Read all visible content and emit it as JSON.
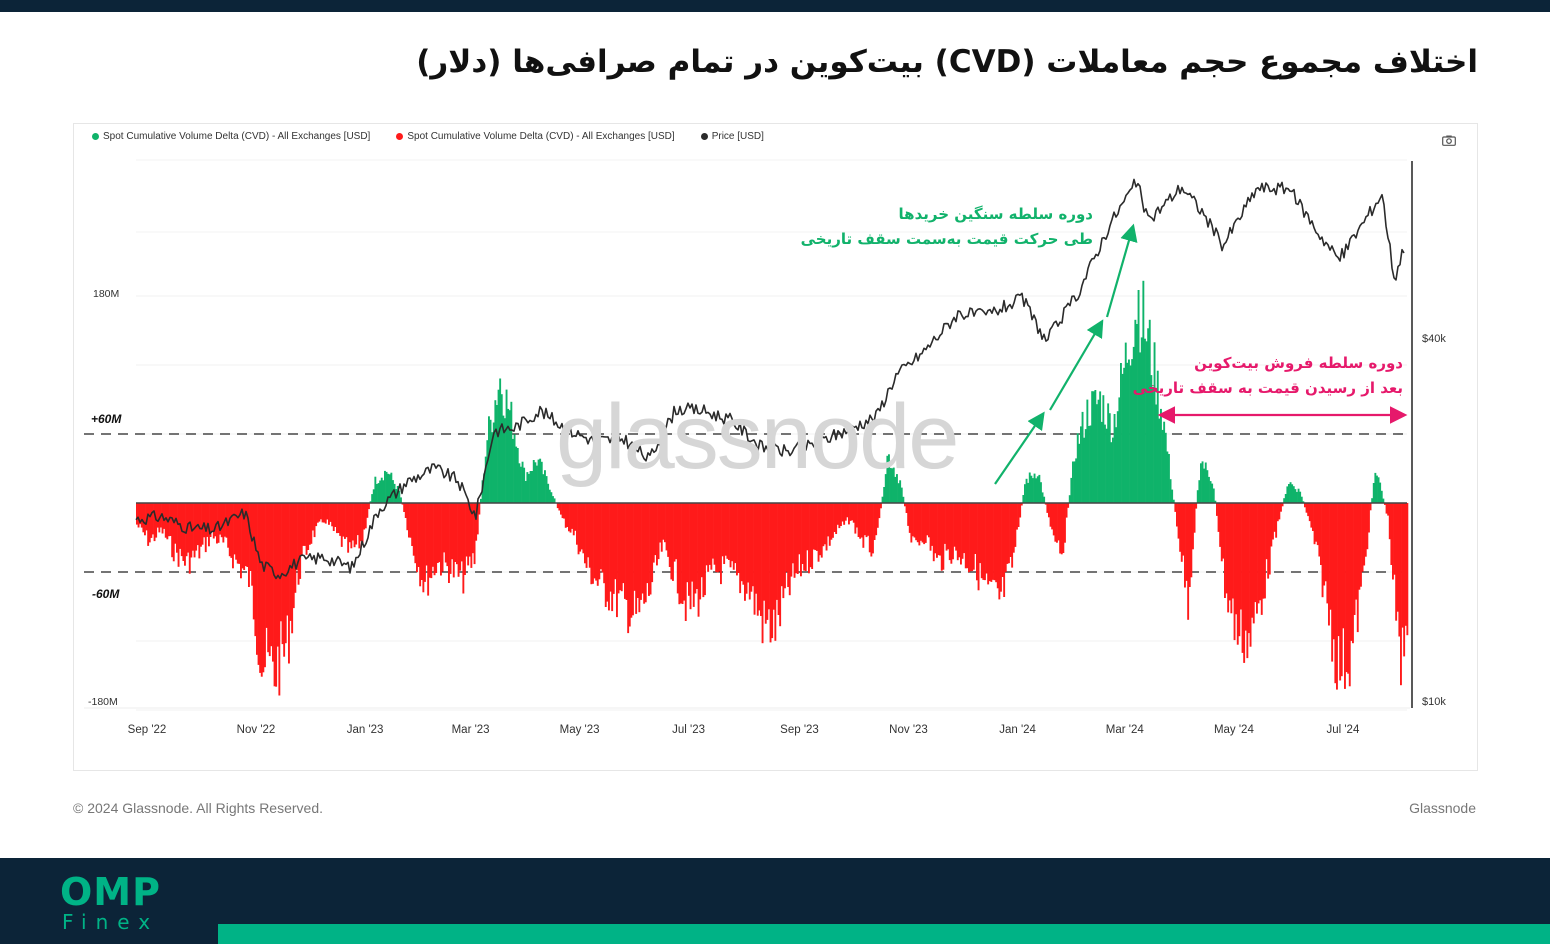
{
  "page": {
    "title": "اختلاف مجموع حجم معاملات (CVD) بیت‌کوین در تمام صرافی‌ها (دلار)",
    "footer_copyright": "© 2024 Glassnode. All Rights Reserved.",
    "footer_brand": "Glassnode",
    "watermark": "glassnode",
    "brand_primary": "OMP",
    "brand_secondary": "Finex",
    "colors": {
      "dark_navy": "#0c2438",
      "brand_green": "#00b386",
      "cvd_positive": "#0fb36a",
      "cvd_negative": "#ff1a1a",
      "price_line": "#2b2b2b",
      "annot_buy": "#11b26b",
      "annot_sell": "#e6196b"
    }
  },
  "annotations": {
    "buy_line1": "دوره سلطه سنگین خریدها",
    "buy_line2": "طی حرکت قیمت به‌سمت سقف تاریخی",
    "sell_line1": "دوره سلطه فروش بیت‌کوین",
    "sell_line2": "بعد از رسیدن قیمت به سقف تاریخی"
  },
  "chart_data": {
    "type": "area",
    "legend": [
      {
        "name": "Spot Cumulative Volume Delta (CVD) - All Exchanges [USD]",
        "color": "#0fb36a"
      },
      {
        "name": "Spot Cumulative Volume Delta (CVD) - All Exchanges [USD]",
        "color": "#ff1a1a"
      },
      {
        "name": "Price [USD]",
        "color": "#2b2b2b"
      }
    ],
    "x_ticks": [
      "Sep '22",
      "Nov '22",
      "Jan '23",
      "Mar '23",
      "May '23",
      "Jul '23",
      "Sep '23",
      "Nov '23",
      "Jan '24",
      "Mar '24",
      "May '24",
      "Jul '24"
    ],
    "x_range": [
      "2022-09-01",
      "2024-08-12"
    ],
    "left_axis": {
      "ticks": [
        "180M",
        "+60M",
        "-60M",
        "-180M"
      ],
      "tick_values": [
        180,
        60,
        -60,
        -180
      ],
      "range": [
        -180,
        220
      ],
      "unit": "M USD"
    },
    "right_axis": {
      "ticks": [
        "$40k",
        "$10k"
      ],
      "tick_values": [
        40000,
        10000
      ],
      "scale": "log",
      "range": [
        10000,
        80000
      ]
    },
    "reference_lines": [
      60,
      -60
    ],
    "cvd_series": {
      "name": "Spot Cumulative Volume Delta (CVD) - All Exchanges [USD]",
      "points": [
        [
          "2022-09-01",
          -20
        ],
        [
          "2022-09-08",
          -35
        ],
        [
          "2022-09-15",
          -25
        ],
        [
          "2022-09-22",
          -45
        ],
        [
          "2022-09-29",
          -55
        ],
        [
          "2022-10-06",
          -45
        ],
        [
          "2022-10-13",
          -30
        ],
        [
          "2022-10-20",
          -38
        ],
        [
          "2022-10-27",
          -55
        ],
        [
          "2022-11-03",
          -70
        ],
        [
          "2022-11-10",
          -145
        ],
        [
          "2022-11-17",
          -155
        ],
        [
          "2022-11-24",
          -130
        ],
        [
          "2022-12-01",
          -60
        ],
        [
          "2022-12-08",
          -30
        ],
        [
          "2022-12-15",
          -15
        ],
        [
          "2022-12-22",
          -30
        ],
        [
          "2022-12-29",
          -45
        ],
        [
          "2023-01-05",
          -35
        ],
        [
          "2023-01-12",
          20
        ],
        [
          "2023-01-19",
          30
        ],
        [
          "2023-01-26",
          10
        ],
        [
          "2023-02-02",
          -40
        ],
        [
          "2023-02-09",
          -75
        ],
        [
          "2023-02-16",
          -55
        ],
        [
          "2023-02-23",
          -60
        ],
        [
          "2023-03-02",
          -70
        ],
        [
          "2023-03-09",
          -50
        ],
        [
          "2023-03-16",
          60
        ],
        [
          "2023-03-23",
          115
        ],
        [
          "2023-03-30",
          75
        ],
        [
          "2023-04-06",
          25
        ],
        [
          "2023-04-13",
          40
        ],
        [
          "2023-04-20",
          15
        ],
        [
          "2023-04-27",
          -15
        ],
        [
          "2023-05-04",
          -30
        ],
        [
          "2023-05-11",
          -60
        ],
        [
          "2023-05-18",
          -75
        ],
        [
          "2023-05-25",
          -85
        ],
        [
          "2023-06-01",
          -95
        ],
        [
          "2023-06-08",
          -105
        ],
        [
          "2023-06-15",
          -80
        ],
        [
          "2023-06-22",
          -40
        ],
        [
          "2023-06-29",
          -65
        ],
        [
          "2023-07-06",
          -95
        ],
        [
          "2023-07-13",
          -85
        ],
        [
          "2023-07-20",
          -65
        ],
        [
          "2023-07-27",
          -60
        ],
        [
          "2023-08-03",
          -70
        ],
        [
          "2023-08-10",
          -80
        ],
        [
          "2023-08-17",
          -110
        ],
        [
          "2023-08-24",
          -115
        ],
        [
          "2023-08-31",
          -80
        ],
        [
          "2023-09-07",
          -60
        ],
        [
          "2023-09-14",
          -50
        ],
        [
          "2023-09-21",
          -40
        ],
        [
          "2023-09-28",
          -25
        ],
        [
          "2023-10-05",
          -15
        ],
        [
          "2023-10-12",
          -35
        ],
        [
          "2023-10-19",
          -45
        ],
        [
          "2023-10-26",
          45
        ],
        [
          "2023-11-02",
          20
        ],
        [
          "2023-11-09",
          -40
        ],
        [
          "2023-11-16",
          -30
        ],
        [
          "2023-11-23",
          -55
        ],
        [
          "2023-11-30",
          -45
        ],
        [
          "2023-12-07",
          -50
        ],
        [
          "2023-12-14",
          -60
        ],
        [
          "2023-12-21",
          -80
        ],
        [
          "2023-12-28",
          -90
        ],
        [
          "2024-01-04",
          -55
        ],
        [
          "2024-01-11",
          20
        ],
        [
          "2024-01-18",
          30
        ],
        [
          "2024-01-25",
          -20
        ],
        [
          "2024-02-01",
          -45
        ],
        [
          "2024-02-08",
          50
        ],
        [
          "2024-02-15",
          85
        ],
        [
          "2024-02-22",
          95
        ],
        [
          "2024-02-29",
          70
        ],
        [
          "2024-03-07",
          130
        ],
        [
          "2024-03-14",
          190
        ],
        [
          "2024-03-21",
          140
        ],
        [
          "2024-03-28",
          80
        ],
        [
          "2024-04-04",
          -10
        ],
        [
          "2024-04-11",
          -90
        ],
        [
          "2024-04-18",
          40
        ],
        [
          "2024-04-25",
          20
        ],
        [
          "2024-05-02",
          -80
        ],
        [
          "2024-05-09",
          -120
        ],
        [
          "2024-05-16",
          -125
        ],
        [
          "2024-05-23",
          -80
        ],
        [
          "2024-05-30",
          -30
        ],
        [
          "2024-06-06",
          20
        ],
        [
          "2024-06-13",
          10
        ],
        [
          "2024-06-20",
          -30
        ],
        [
          "2024-06-27",
          -85
        ],
        [
          "2024-07-04",
          -150
        ],
        [
          "2024-07-11",
          -140
        ],
        [
          "2024-07-18",
          -70
        ],
        [
          "2024-07-25",
          35
        ],
        [
          "2024-08-01",
          -15
        ],
        [
          "2024-08-08",
          -155
        ],
        [
          "2024-08-12",
          -95
        ]
      ]
    },
    "price_series": {
      "name": "Price [USD]",
      "points": [
        [
          "2022-09-01",
          20000
        ],
        [
          "2022-09-15",
          20200
        ],
        [
          "2022-10-01",
          19300
        ],
        [
          "2022-10-15",
          19200
        ],
        [
          "2022-11-01",
          20500
        ],
        [
          "2022-11-10",
          16800
        ],
        [
          "2022-11-20",
          16200
        ],
        [
          "2022-12-01",
          17000
        ],
        [
          "2022-12-15",
          17300
        ],
        [
          "2022-12-31",
          16600
        ],
        [
          "2023-01-15",
          20800
        ],
        [
          "2023-01-31",
          23100
        ],
        [
          "2023-02-15",
          24300
        ],
        [
          "2023-02-28",
          23200
        ],
        [
          "2023-03-10",
          20200
        ],
        [
          "2023-03-20",
          28000
        ],
        [
          "2023-04-01",
          28400
        ],
        [
          "2023-04-15",
          30300
        ],
        [
          "2023-05-01",
          28100
        ],
        [
          "2023-05-15",
          27000
        ],
        [
          "2023-06-01",
          27200
        ],
        [
          "2023-06-15",
          25100
        ],
        [
          "2023-06-30",
          30500
        ],
        [
          "2023-07-15",
          30300
        ],
        [
          "2023-07-31",
          29200
        ],
        [
          "2023-08-17",
          26300
        ],
        [
          "2023-09-01",
          25900
        ],
        [
          "2023-09-15",
          26600
        ],
        [
          "2023-10-01",
          27900
        ],
        [
          "2023-10-20",
          29600
        ],
        [
          "2023-10-31",
          34600
        ],
        [
          "2023-11-15",
          37800
        ],
        [
          "2023-12-05",
          44000
        ],
        [
          "2023-12-20",
          43600
        ],
        [
          "2024-01-10",
          46500
        ],
        [
          "2024-01-23",
          39500
        ],
        [
          "2024-02-10",
          47500
        ],
        [
          "2024-02-28",
          62000
        ],
        [
          "2024-03-14",
          73000
        ],
        [
          "2024-03-20",
          62500
        ],
        [
          "2024-04-08",
          71500
        ],
        [
          "2024-04-20",
          64500
        ],
        [
          "2024-05-01",
          57000
        ],
        [
          "2024-05-20",
          71000
        ],
        [
          "2024-06-07",
          71000
        ],
        [
          "2024-06-24",
          59500
        ],
        [
          "2024-07-05",
          54000
        ],
        [
          "2024-07-29",
          69500
        ],
        [
          "2024-08-05",
          50000
        ],
        [
          "2024-08-12",
          59000
        ]
      ]
    }
  }
}
